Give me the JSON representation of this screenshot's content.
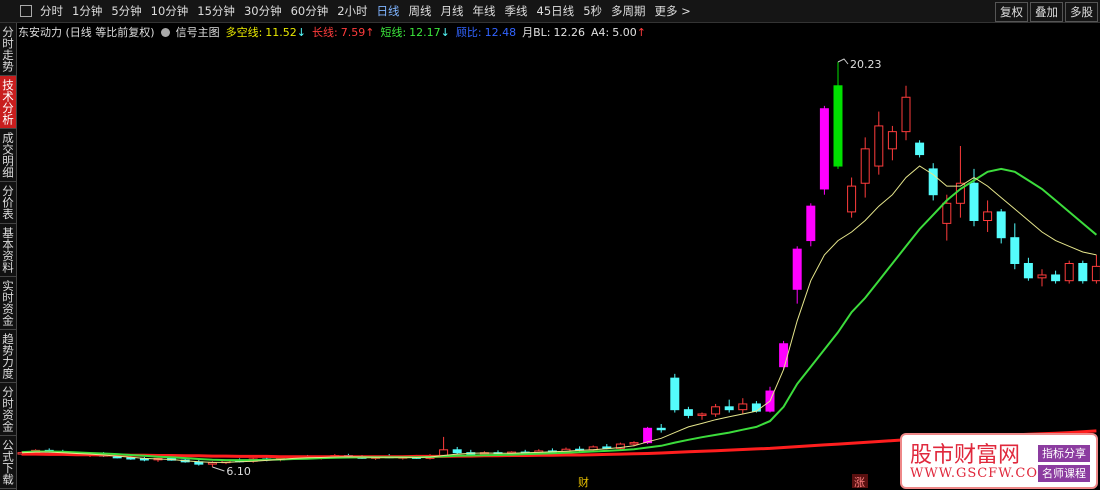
{
  "toolbar": {
    "periods": [
      "分时",
      "1分钟",
      "5分钟",
      "10分钟",
      "15分钟",
      "30分钟",
      "60分钟",
      "2小时",
      "日线",
      "周线",
      "月线",
      "年线",
      "季线",
      "45日线",
      "5秒",
      "多周期",
      "更多 >"
    ],
    "active": "日线",
    "right_buttons": [
      "复权",
      "叠加",
      "多股"
    ]
  },
  "sidebar": {
    "tabs": [
      "分时走势",
      "技术分析",
      "成交明细",
      "分价表",
      "基本资料",
      "实时资金",
      "趋势力度",
      "分时资金",
      "公式下载"
    ],
    "active": "技术分析"
  },
  "chart_data": {
    "type": "candlestick",
    "title": "东安动力 (日线 等比前复权)",
    "indicator": "信号主图",
    "indicator_values": [
      {
        "name": "多空线:",
        "value": "11.52",
        "arrow": "↓",
        "color": "#e8e800",
        "arrow_color": "#54fcfc"
      },
      {
        "name": "长线:",
        "value": "7.59",
        "arrow": "↑",
        "color": "#ff3c3c",
        "arrow_color": "#ff3c3c"
      },
      {
        "name": "短线:",
        "value": "12.17",
        "arrow": "↓",
        "color": "#3ce63c",
        "arrow_color": "#54fcfc"
      },
      {
        "name": "顾比:",
        "value": "12.48",
        "arrow": "",
        "color": "#3264ff",
        "arrow_color": "#3264ff"
      },
      {
        "name": "月BL:",
        "value": "12.26",
        "arrow": "",
        "color": "#e0e0e0",
        "arrow_color": "#e0e0e0"
      },
      {
        "name": "A4:",
        "value": "5.00",
        "arrow": "↑",
        "color": "#e0e0e0",
        "arrow_color": "#ff3c3c"
      }
    ],
    "open": [
      6.55,
      6.6,
      6.68,
      6.62,
      6.58,
      6.52,
      6.55,
      6.48,
      6.42,
      6.38,
      6.35,
      6.4,
      6.34,
      6.28,
      6.2,
      6.25,
      6.32,
      6.3,
      6.38,
      6.35,
      6.4,
      6.45,
      6.42,
      6.46,
      6.5,
      6.45,
      6.4,
      6.46,
      6.42,
      6.44,
      6.4,
      6.5,
      6.7,
      6.6,
      6.55,
      6.6,
      6.56,
      6.62,
      6.58,
      6.66,
      6.62,
      6.72,
      6.7,
      6.8,
      6.75,
      6.9,
      6.95,
      7.45,
      9.2,
      8.1,
      7.9,
      7.95,
      8.2,
      8.1,
      8.3,
      8.05,
      9.6,
      12.3,
      14.0,
      15.8,
      16.6,
      15.0,
      16.0,
      16.6,
      17.2,
      17.8,
      17.4,
      16.5,
      14.6,
      15.3,
      16.0,
      14.7,
      15.0,
      14.1,
      13.2,
      12.7,
      12.8,
      12.6,
      13.2,
      12.6
    ],
    "high": [
      6.65,
      6.72,
      6.75,
      6.7,
      6.64,
      6.6,
      6.62,
      6.55,
      6.5,
      6.45,
      6.42,
      6.48,
      6.4,
      6.35,
      6.3,
      6.36,
      6.4,
      6.42,
      6.45,
      6.44,
      6.5,
      6.52,
      6.5,
      6.55,
      6.56,
      6.52,
      6.5,
      6.55,
      6.5,
      6.52,
      6.55,
      7.15,
      6.8,
      6.7,
      6.65,
      6.68,
      6.65,
      6.7,
      6.72,
      6.75,
      6.78,
      6.82,
      6.85,
      6.9,
      6.95,
      7.0,
      7.5,
      7.6,
      9.35,
      8.2,
      8.0,
      8.3,
      8.45,
      8.5,
      8.4,
      8.9,
      10.5,
      13.8,
      15.3,
      18.7,
      20.23,
      16.2,
      17.6,
      18.5,
      18.0,
      19.4,
      17.5,
      16.7,
      15.6,
      17.3,
      16.5,
      15.4,
      15.1,
      14.6,
      13.4,
      13.0,
      12.95,
      13.3,
      13.3,
      13.5
    ],
    "low": [
      6.5,
      6.55,
      6.6,
      6.55,
      6.5,
      6.45,
      6.45,
      6.4,
      6.35,
      6.3,
      6.28,
      6.32,
      6.25,
      6.15,
      6.1,
      6.2,
      6.26,
      6.25,
      6.3,
      6.3,
      6.35,
      6.38,
      6.36,
      6.4,
      6.42,
      6.38,
      6.35,
      6.4,
      6.36,
      6.38,
      6.36,
      6.45,
      6.55,
      6.5,
      6.48,
      6.52,
      6.5,
      6.55,
      6.52,
      6.58,
      6.56,
      6.64,
      6.65,
      6.72,
      6.7,
      6.82,
      6.9,
      7.3,
      8.0,
      7.8,
      7.75,
      7.85,
      8.0,
      7.95,
      8.0,
      8.0,
      9.5,
      11.8,
      13.8,
      15.6,
      16.5,
      14.8,
      15.5,
      16.3,
      16.8,
      17.5,
      16.9,
      15.4,
      14.0,
      14.8,
      14.5,
      14.3,
      13.9,
      13.0,
      12.6,
      12.4,
      12.5,
      12.5,
      12.5,
      12.5
    ],
    "close": [
      6.6,
      6.68,
      6.62,
      6.58,
      6.52,
      6.55,
      6.48,
      6.42,
      6.38,
      6.35,
      6.4,
      6.34,
      6.28,
      6.2,
      6.25,
      6.32,
      6.3,
      6.38,
      6.35,
      6.4,
      6.45,
      6.42,
      6.46,
      6.5,
      6.45,
      6.4,
      6.46,
      6.42,
      6.44,
      6.4,
      6.5,
      6.7,
      6.6,
      6.55,
      6.6,
      6.56,
      6.62,
      6.58,
      6.66,
      6.62,
      6.72,
      6.7,
      6.8,
      6.75,
      6.9,
      6.95,
      7.45,
      7.4,
      8.1,
      7.9,
      7.95,
      8.2,
      8.1,
      8.3,
      8.05,
      8.75,
      10.4,
      13.7,
      15.2,
      18.6,
      19.4,
      15.9,
      17.2,
      18.0,
      17.8,
      19.0,
      17.0,
      15.6,
      15.3,
      16.0,
      14.7,
      15.0,
      14.1,
      13.2,
      12.7,
      12.8,
      12.6,
      13.2,
      12.6,
      13.1
    ],
    "candle_colors": [
      "#ff3c3c",
      "#ff3c3c",
      "#54fcfc",
      "#54fcfc",
      "#54fcfc",
      "#ff3c3c",
      "#54fcfc",
      "#54fcfc",
      "#54fcfc",
      "#54fcfc",
      "#ff3c3c",
      "#54fcfc",
      "#54fcfc",
      "#54fcfc",
      "#ff3c3c",
      "#ff3c3c",
      "#54fcfc",
      "#ff3c3c",
      "#54fcfc",
      "#ff3c3c",
      "#ff3c3c",
      "#54fcfc",
      "#ff3c3c",
      "#ff3c3c",
      "#54fcfc",
      "#54fcfc",
      "#ff3c3c",
      "#54fcfc",
      "#ff3c3c",
      "#54fcfc",
      "#ff3c3c",
      "#ff3c3c",
      "#54fcfc",
      "#54fcfc",
      "#ff3c3c",
      "#54fcfc",
      "#ff3c3c",
      "#54fcfc",
      "#ff3c3c",
      "#54fcfc",
      "#ff3c3c",
      "#54fcfc",
      "#ff3c3c",
      "#54fcfc",
      "#ff3c3c",
      "#ff3c3c",
      "#ff00ff",
      "#54fcfc",
      "#54fcfc",
      "#54fcfc",
      "#ff3c3c",
      "#ff3c3c",
      "#54fcfc",
      "#ff3c3c",
      "#54fcfc",
      "#ff00ff",
      "#ff00ff",
      "#ff00ff",
      "#ff00ff",
      "#ff00ff",
      "#00e000",
      "#ff3c3c",
      "#ff3c3c",
      "#ff3c3c",
      "#ff3c3c",
      "#ff3c3c",
      "#54fcfc",
      "#54fcfc",
      "#ff3c3c",
      "#ff3c3c",
      "#54fcfc",
      "#ff3c3c",
      "#54fcfc",
      "#54fcfc",
      "#54fcfc",
      "#ff3c3c",
      "#54fcfc",
      "#ff3c3c",
      "#54fcfc",
      "#ff3c3c"
    ],
    "series": [
      {
        "color": "#ff1e1e",
        "width": 3,
        "values": [
          6.55,
          6.55,
          6.54,
          6.54,
          6.53,
          6.53,
          6.52,
          6.52,
          6.51,
          6.51,
          6.5,
          6.5,
          6.49,
          6.49,
          6.48,
          6.48,
          6.47,
          6.47,
          6.47,
          6.46,
          6.46,
          6.46,
          6.46,
          6.46,
          6.46,
          6.46,
          6.46,
          6.46,
          6.46,
          6.47,
          6.47,
          6.47,
          6.48,
          6.48,
          6.49,
          6.49,
          6.5,
          6.5,
          6.51,
          6.51,
          6.52,
          6.52,
          6.53,
          6.54,
          6.55,
          6.56,
          6.57,
          6.59,
          6.61,
          6.63,
          6.65,
          6.67,
          6.69,
          6.71,
          6.73,
          6.75,
          6.78,
          6.81,
          6.84,
          6.87,
          6.9,
          6.93,
          6.96,
          6.99,
          7.02,
          7.05,
          7.08,
          7.1,
          7.12,
          7.14,
          7.16,
          7.18,
          7.2,
          7.22,
          7.24,
          7.26,
          7.28,
          7.3,
          7.33,
          7.36
        ]
      },
      {
        "color": "#3cdc3c",
        "width": 2,
        "values": [
          6.62,
          6.64,
          6.64,
          6.63,
          6.61,
          6.59,
          6.57,
          6.55,
          6.52,
          6.49,
          6.46,
          6.44,
          6.41,
          6.38,
          6.35,
          6.34,
          6.34,
          6.34,
          6.35,
          6.36,
          6.38,
          6.39,
          6.41,
          6.42,
          6.43,
          6.44,
          6.44,
          6.44,
          6.44,
          6.44,
          6.45,
          6.47,
          6.49,
          6.5,
          6.51,
          6.52,
          6.53,
          6.55,
          6.56,
          6.58,
          6.6,
          6.62,
          6.64,
          6.66,
          6.69,
          6.72,
          6.78,
          6.84,
          6.95,
          7.05,
          7.14,
          7.22,
          7.3,
          7.4,
          7.5,
          7.7,
          8.2,
          9.0,
          9.6,
          10.2,
          10.8,
          11.5,
          12.0,
          12.6,
          13.2,
          13.8,
          14.4,
          14.9,
          15.4,
          15.8,
          16.1,
          16.4,
          16.5,
          16.4,
          16.1,
          15.8,
          15.4,
          15.0,
          14.6,
          14.2
        ]
      },
      {
        "color": "#e6e68c",
        "width": 1,
        "values": [
          6.6,
          6.62,
          6.62,
          6.6,
          6.57,
          6.55,
          6.52,
          6.48,
          6.44,
          6.4,
          6.38,
          6.36,
          6.32,
          6.28,
          6.26,
          6.26,
          6.28,
          6.3,
          6.33,
          6.36,
          6.4,
          6.42,
          6.43,
          6.45,
          6.46,
          6.45,
          6.44,
          6.44,
          6.44,
          6.43,
          6.45,
          6.5,
          6.55,
          6.58,
          6.59,
          6.58,
          6.58,
          6.6,
          6.61,
          6.63,
          6.65,
          6.68,
          6.7,
          6.74,
          6.78,
          6.84,
          6.98,
          7.1,
          7.3,
          7.5,
          7.62,
          7.75,
          7.85,
          7.95,
          8.05,
          8.4,
          9.5,
          11.2,
          12.6,
          13.5,
          14.0,
          14.3,
          14.7,
          15.2,
          15.6,
          16.2,
          16.6,
          16.3,
          15.9,
          15.9,
          16.2,
          15.9,
          15.5,
          15.1,
          14.7,
          14.3,
          14.0,
          13.8,
          13.6,
          13.5
        ]
      }
    ],
    "high_label": "20.23",
    "low_label": "6.10",
    "markers": [
      "财",
      "涨"
    ]
  },
  "watermark": {
    "site": "股市财富网",
    "url": "WWW.GSCFW.COM",
    "tags": [
      "指标分享",
      "名师课程"
    ]
  }
}
